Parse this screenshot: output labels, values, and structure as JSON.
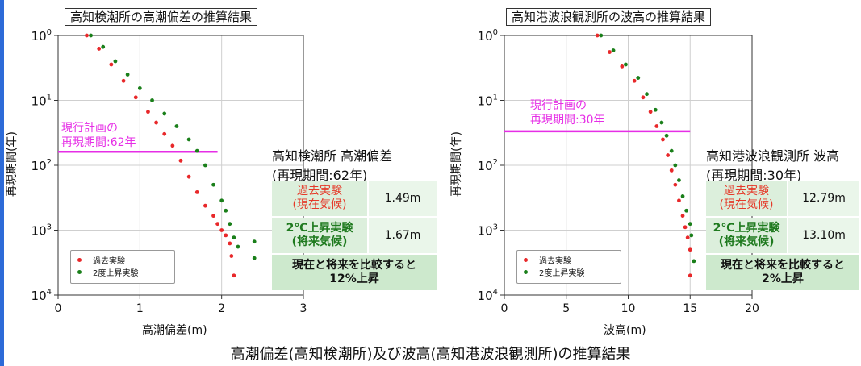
{
  "caption": "高潮偏差(高知検潮所)及び波高(高知港波浪観測所)の推算結果",
  "legend_labels": {
    "past": "過去実験",
    "future": "2度上昇実験"
  },
  "colors": {
    "past": "#e8282a",
    "future": "#1a7f1a",
    "plan_line": "#e62ee6",
    "table_header": "#5cc56c"
  },
  "panels": [
    {
      "title": "高知検潮所の高潮偏差の推算結果",
      "xlabel": "高潮偏差(m)",
      "ylabel": "再現期間(年)",
      "plan_label_line1": "現行計画の",
      "plan_label_line2": "再現期間:62年",
      "table": {
        "header_line1": "高知検潮所 高潮偏差",
        "header_line2": "(再現期間:62年)",
        "past_label_line1": "過去実験",
        "past_label_line2": "(現在気候)",
        "past_value": "1.49m",
        "future_label_line1": "2℃上昇実験",
        "future_label_line2": "(将来気候)",
        "future_value": "1.67m",
        "summary_line1": "現在と将来を比較すると",
        "summary_line2": "12%上昇"
      }
    },
    {
      "title": "高知港波浪観測所の波高の推算結果",
      "xlabel": "波高(m)",
      "ylabel": "再現期間(年)",
      "plan_label_line1": "現行計画の",
      "plan_label_line2": "再現期間:30年",
      "table": {
        "header_line1": "高知港波浪観測所 波高",
        "header_line2": "(再現期間:30年)",
        "past_label_line1": "過去実験",
        "past_label_line2": "(現在気候)",
        "past_value": "12.79m",
        "future_label_line1": "2℃上昇実験",
        "future_label_line2": "(将来気候)",
        "future_value": "13.10m",
        "summary_line1": "現在と将来を比較すると",
        "summary_line2": "2%上昇"
      }
    }
  ],
  "chart_data": [
    {
      "type": "scatter",
      "title": "高知検潮所の高潮偏差の推算結果",
      "xlabel": "高潮偏差(m)",
      "ylabel": "再現期間(年)",
      "xlim": [
        0,
        3
      ],
      "xticks": [
        0,
        1,
        2,
        3
      ],
      "ylim": [
        1,
        10000
      ],
      "yscale": "log",
      "yticks": [
        1,
        10,
        100,
        1000,
        10000
      ],
      "grid": true,
      "legend_position": "bottom-left",
      "reference_line": {
        "label": "現行計画の再現期間:62年",
        "y": 62,
        "x_range": [
          0,
          1.95
        ]
      },
      "series": [
        {
          "name": "過去実験",
          "color": "#e8282a",
          "x": [
            0.35,
            0.5,
            0.65,
            0.8,
            0.95,
            1.1,
            1.2,
            1.3,
            1.4,
            1.5,
            1.6,
            1.7,
            1.8,
            1.9,
            1.95,
            2.0,
            2.05,
            2.1,
            2.12,
            2.15
          ],
          "y": [
            1,
            1.6,
            2.8,
            5,
            9,
            15,
            22,
            33,
            50,
            85,
            150,
            260,
            420,
            600,
            800,
            1000,
            1200,
            1600,
            2500,
            5000
          ]
        },
        {
          "name": "2度上昇実験",
          "color": "#1a7f1a",
          "x": [
            0.4,
            0.55,
            0.7,
            0.85,
            1.0,
            1.15,
            1.3,
            1.45,
            1.6,
            1.7,
            1.8,
            1.9,
            2.0,
            2.05,
            2.1,
            2.15,
            2.2,
            2.4,
            2.4
          ],
          "y": [
            1,
            1.5,
            2.5,
            4,
            6.5,
            10,
            16,
            25,
            40,
            60,
            100,
            200,
            350,
            500,
            800,
            1300,
            1800,
            1500,
            2700
          ]
        }
      ]
    },
    {
      "type": "scatter",
      "title": "高知港波浪観測所の波高の推算結果",
      "xlabel": "波高(m)",
      "ylabel": "再現期間(年)",
      "xlim": [
        0,
        20
      ],
      "xticks": [
        0,
        5,
        10,
        15,
        20
      ],
      "ylim": [
        1,
        10000
      ],
      "yscale": "log",
      "yticks": [
        1,
        10,
        100,
        1000,
        10000
      ],
      "grid": true,
      "legend_position": "bottom-left",
      "reference_line": {
        "label": "現行計画の再現期間:30年",
        "y": 30,
        "x_range": [
          0,
          15
        ]
      },
      "series": [
        {
          "name": "過去実験",
          "color": "#e8282a",
          "x": [
            7.5,
            8.5,
            9.5,
            10.5,
            11.2,
            11.8,
            12.3,
            12.8,
            13.2,
            13.5,
            13.8,
            14.1,
            14.4,
            14.6,
            14.8,
            15.0,
            15.0
          ],
          "y": [
            1,
            1.8,
            3,
            5,
            9,
            15,
            25,
            40,
            70,
            120,
            200,
            350,
            600,
            900,
            1300,
            2000,
            5000
          ]
        },
        {
          "name": "2度上昇実験",
          "color": "#1a7f1a",
          "x": [
            7.8,
            8.8,
            9.8,
            10.8,
            11.5,
            12.2,
            12.7,
            13.1,
            13.5,
            13.8,
            14.1,
            14.4,
            14.7,
            15.0,
            15.1,
            15.3
          ],
          "y": [
            1,
            1.7,
            2.8,
            4.5,
            8,
            14,
            22,
            35,
            60,
            100,
            170,
            300,
            500,
            800,
            1200,
            3000
          ]
        }
      ]
    }
  ]
}
